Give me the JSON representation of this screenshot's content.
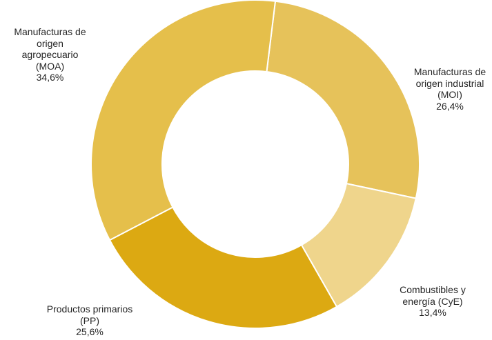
{
  "chart_data": {
    "type": "pie",
    "donut": true,
    "categories": [
      "Manufacturas de origen industrial (MOI)",
      "Combustibles y energía (CyE)",
      "Productos primarios (PP)",
      "Manufacturas de origen agropecuario (MOA)"
    ],
    "values": [
      26.4,
      13.4,
      25.6,
      34.6
    ],
    "colors": [
      "#e6c25a",
      "#efd58c",
      "#dca912",
      "#e5bf4b"
    ],
    "labels": [
      {
        "lines": [
          "Manufacturas de",
          "origen industrial",
          "(MOI)"
        ],
        "value": "26,4%"
      },
      {
        "lines": [
          "Combustibles y",
          "energía (CyE)"
        ],
        "value": "13,4%"
      },
      {
        "lines": [
          "Productos primarios",
          "(PP)"
        ],
        "value": "25,6%"
      },
      {
        "lines": [
          "Manufacturas de",
          "origen",
          "agropecuario",
          "(MOA)"
        ],
        "value": "34,6%"
      }
    ],
    "legend": "none"
  }
}
